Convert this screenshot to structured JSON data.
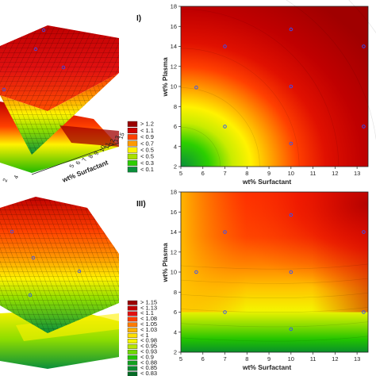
{
  "chart_data": [
    {
      "type": "surface3d",
      "panel": "upper-left",
      "axis_labels": [
        "wt% Surfactant"
      ],
      "tick_labels": [
        "2",
        "4",
        "5",
        "6",
        "7",
        "8",
        "9",
        "10",
        "11",
        "12",
        "13",
        "15"
      ],
      "colors": [
        "#9a0000",
        "#d00000",
        "#ff4000",
        "#ff9900",
        "#fff200",
        "#a8e000",
        "#2ccf00",
        "#0a8f3a"
      ]
    },
    {
      "type": "contour",
      "panel": "upper-right",
      "panel_label": "I)",
      "xlabel": "wt% Surfactant",
      "ylabel": "wt% Plasma",
      "xlim": [
        5,
        13.5
      ],
      "ylim": [
        2,
        18
      ],
      "xticks": [
        5,
        6,
        7,
        8,
        9,
        10,
        11,
        12,
        13
      ],
      "yticks": [
        2,
        4,
        6,
        8,
        10,
        12,
        14,
        16,
        18
      ],
      "design_points": [
        [
          5.7,
          9.9
        ],
        [
          7,
          6
        ],
        [
          7,
          14
        ],
        [
          10,
          4.3
        ],
        [
          10,
          10
        ],
        [
          10,
          15.7
        ],
        [
          13.3,
          6
        ],
        [
          13.3,
          14
        ]
      ],
      "legend": [
        {
          "label": "> 1.2",
          "color": "#9a0000"
        },
        {
          "label": "< 1.1",
          "color": "#d00000"
        },
        {
          "label": "< 0.9",
          "color": "#ff4000"
        },
        {
          "label": "< 0.7",
          "color": "#ff9900"
        },
        {
          "label": "< 0.5",
          "color": "#fff200"
        },
        {
          "label": "< 0.5",
          "color": "#a8e000"
        },
        {
          "label": "< 0.3",
          "color": "#2ccf00"
        },
        {
          "label": "< 0.1",
          "color": "#0a8f3a"
        }
      ]
    },
    {
      "type": "surface3d",
      "panel": "lower-left",
      "colors": [
        "#9a0000",
        "#d00000",
        "#ff4000",
        "#ff9900",
        "#fff200",
        "#a8e000",
        "#2ccf00",
        "#0a8f3a"
      ]
    },
    {
      "type": "contour",
      "panel": "lower-right",
      "panel_label": "III)",
      "xlabel": "wt% Surfactant",
      "ylabel": "wt% Plasma",
      "xlim": [
        5,
        13.5
      ],
      "ylim": [
        2,
        18
      ],
      "xticks": [
        5,
        6,
        7,
        8,
        9,
        10,
        11,
        12,
        13
      ],
      "yticks": [
        2,
        4,
        6,
        8,
        10,
        12,
        14,
        16,
        18
      ],
      "design_points": [
        [
          5.7,
          10
        ],
        [
          7,
          6
        ],
        [
          7,
          14
        ],
        [
          10,
          4.3
        ],
        [
          10,
          10
        ],
        [
          10,
          15.7
        ],
        [
          13.3,
          6
        ],
        [
          13.3,
          14
        ]
      ],
      "legend": [
        {
          "label": "> 1.15",
          "color": "#9a0000"
        },
        {
          "label": "< 1.13",
          "color": "#c00000"
        },
        {
          "label": "< 1.1",
          "color": "#e01010"
        },
        {
          "label": "< 1.08",
          "color": "#ff4000"
        },
        {
          "label": "< 1.05",
          "color": "#ff7a00"
        },
        {
          "label": "< 1.03",
          "color": "#ffb000"
        },
        {
          "label": "< 1",
          "color": "#ffe000"
        },
        {
          "label": "< 0.98",
          "color": "#f4f400"
        },
        {
          "label": "< 0.95",
          "color": "#b8e600"
        },
        {
          "label": "< 0.93",
          "color": "#6fd800"
        },
        {
          "label": "< 0.9",
          "color": "#22c400"
        },
        {
          "label": "< 0.88",
          "color": "#10a020"
        },
        {
          "label": "< 0.85",
          "color": "#0a8a30"
        },
        {
          "label": "< 0.83",
          "color": "#056b25"
        }
      ]
    }
  ]
}
